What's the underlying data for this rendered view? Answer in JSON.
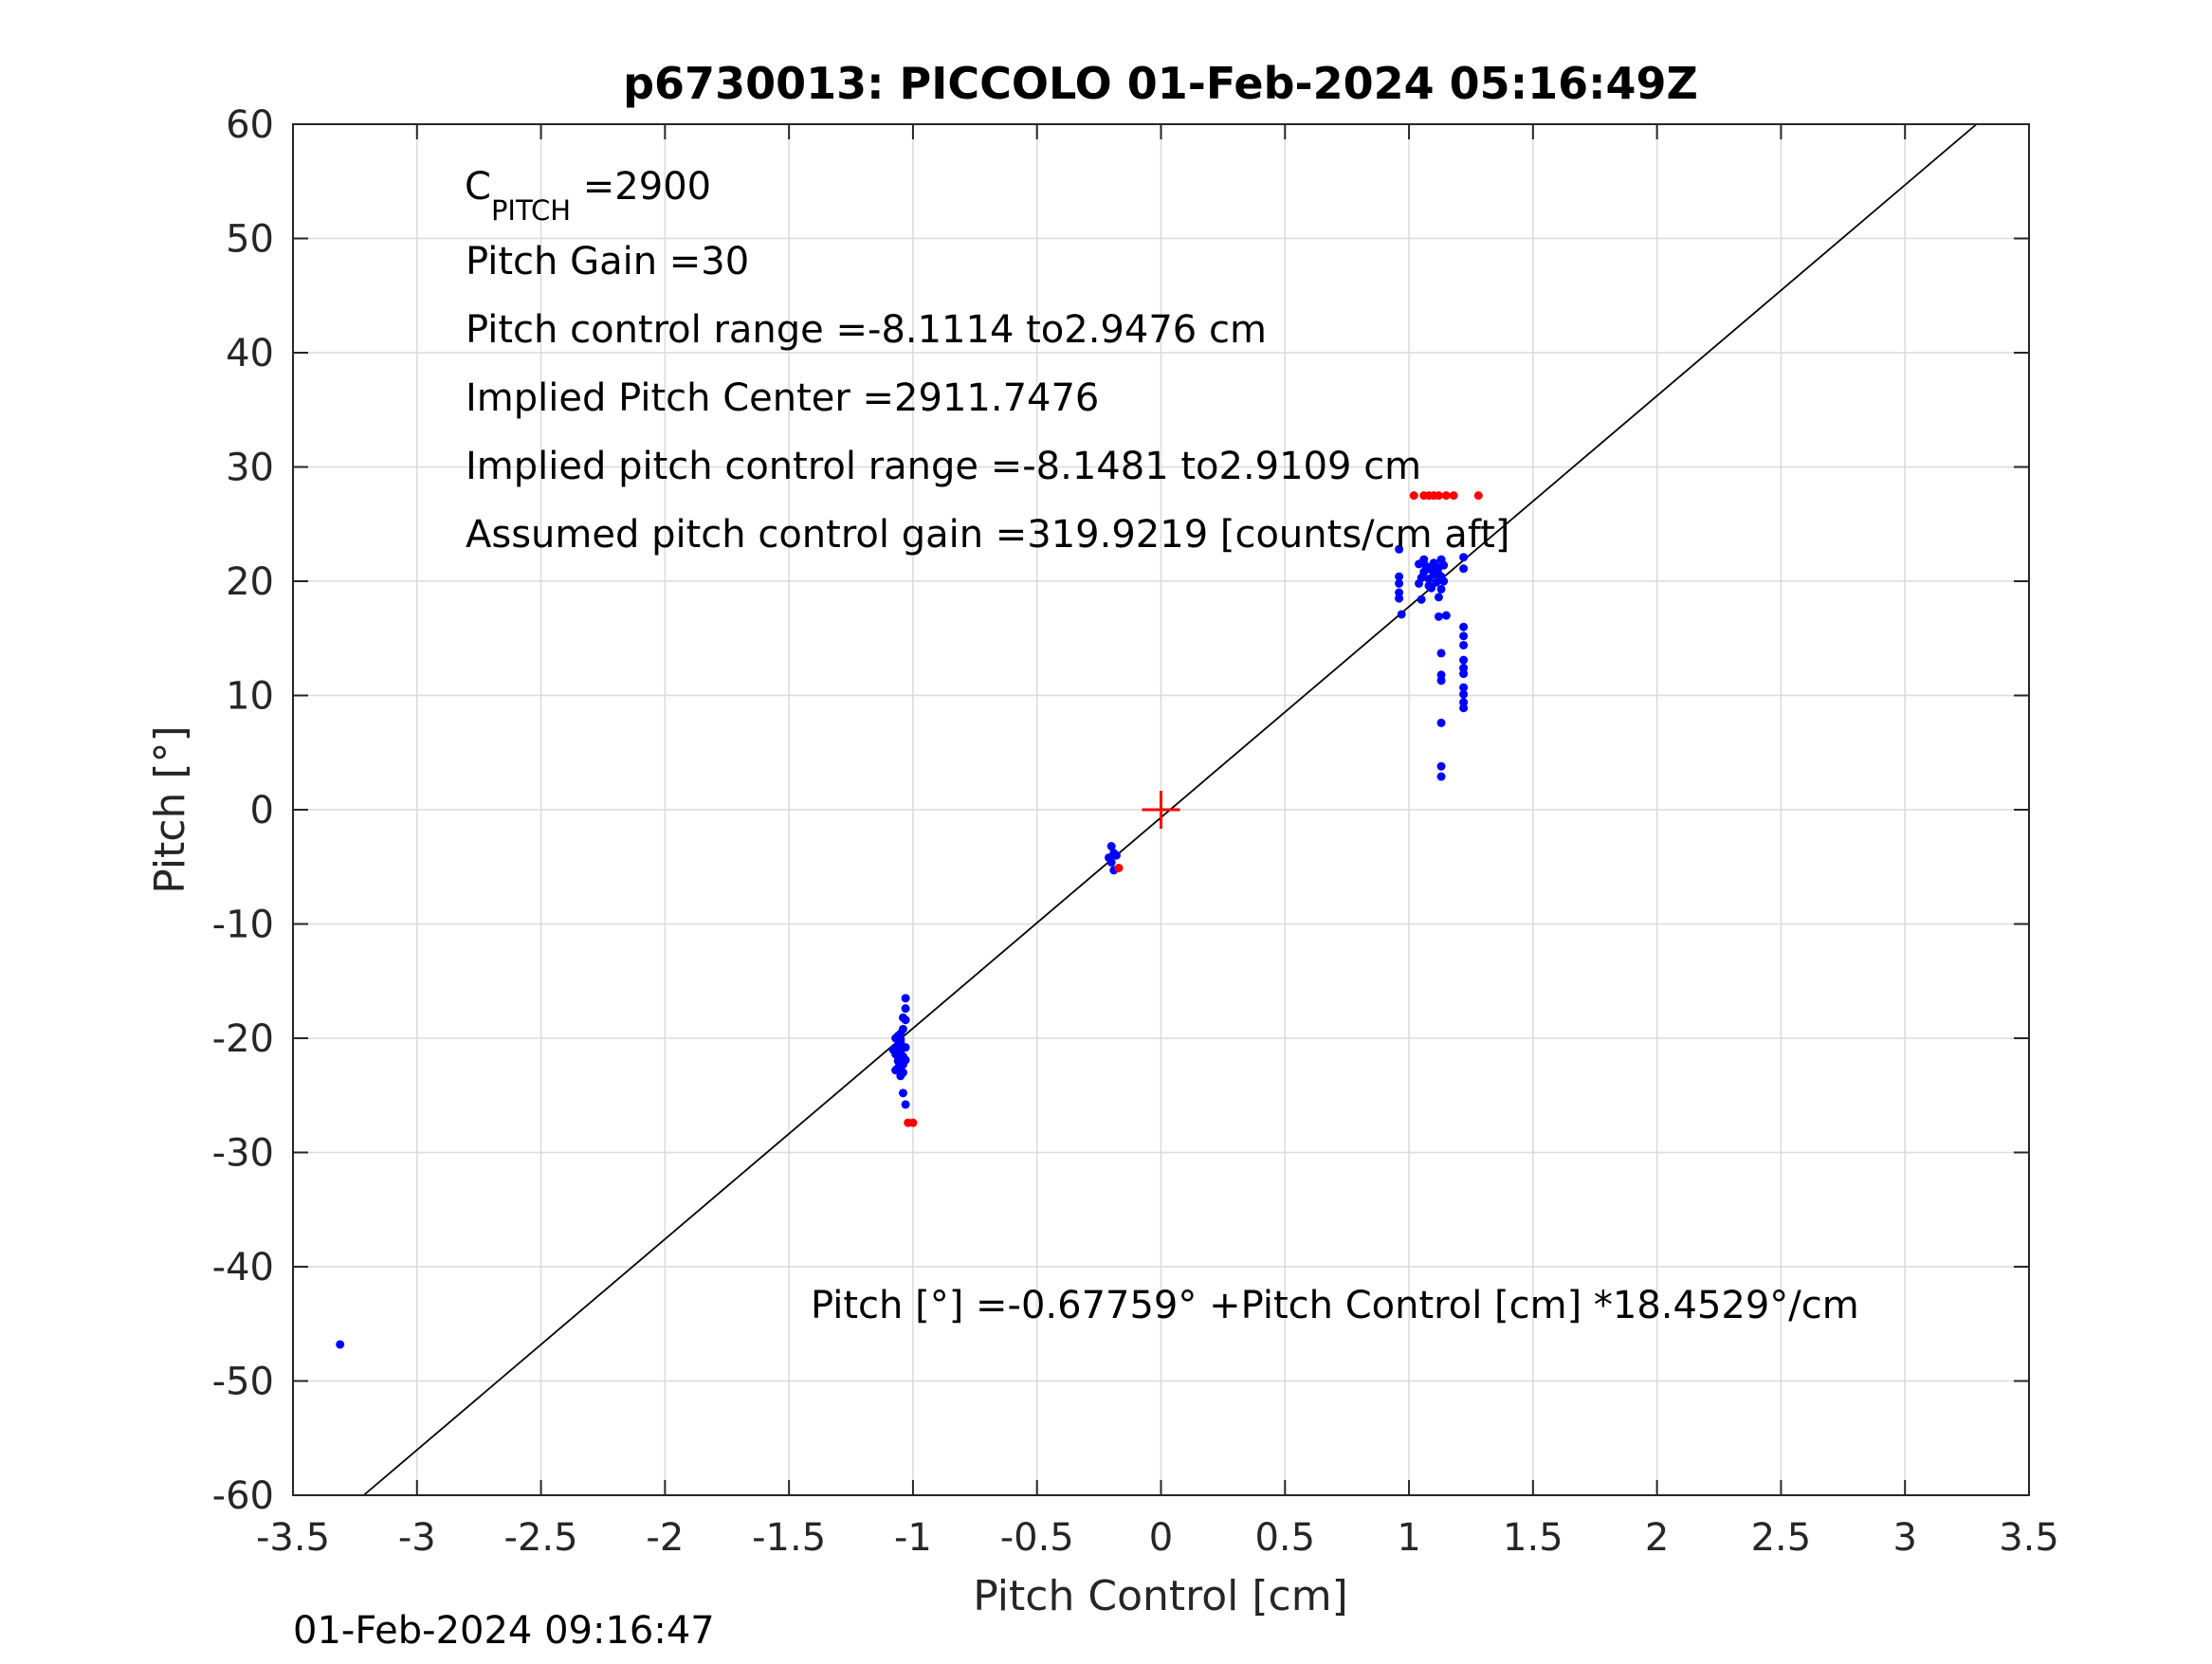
{
  "chart_data": {
    "type": "scatter",
    "title": "p6730013: PICCOLO 01-Feb-2024 05:16:49Z",
    "xlabel": "Pitch Control [cm]",
    "ylabel": "Pitch [°]",
    "xlim": [
      -3.5,
      3.5
    ],
    "ylim": [
      -60,
      60
    ],
    "grid": true,
    "x_ticks": [
      -3.5,
      -3,
      -2.5,
      -2,
      -1.5,
      -1,
      -0.5,
      0,
      0.5,
      1,
      1.5,
      2,
      2.5,
      3,
      3.5
    ],
    "y_ticks": [
      -60,
      -50,
      -40,
      -30,
      -20,
      -10,
      0,
      10,
      20,
      30,
      40,
      50,
      60
    ],
    "x_tick_labels": [
      "-3.5",
      "-3",
      "-2.5",
      "-2",
      "-1.5",
      "-1",
      "-0.5",
      "0",
      "0.5",
      "1",
      "1.5",
      "2",
      "2.5",
      "3",
      "3.5"
    ],
    "y_tick_labels": [
      "-60",
      "-50",
      "-40",
      "-30",
      "-20",
      "-10",
      "0",
      "10",
      "20",
      "30",
      "40",
      "50",
      "60"
    ],
    "colors": {
      "blue": "#0000ff",
      "red": "#ff0000",
      "fit": "#000000"
    },
    "series": [
      {
        "color": "#0000ff",
        "points": [
          [
            -3.31,
            -46.8
          ],
          [
            -0.2,
            -3.2
          ],
          [
            -0.19,
            -3.8
          ],
          [
            -0.18,
            -4.0
          ],
          [
            -0.2,
            -4.6
          ],
          [
            -0.19,
            -5.3
          ],
          [
            -0.21,
            -4.2
          ],
          [
            -1.07,
            -20.0
          ],
          [
            -1.06,
            -20.6
          ],
          [
            -1.08,
            -21.0
          ],
          [
            -1.05,
            -19.6
          ],
          [
            -1.04,
            -19.2
          ],
          [
            -1.06,
            -21.6
          ],
          [
            -1.05,
            -22.2
          ],
          [
            -1.07,
            -22.8
          ],
          [
            -1.04,
            -22.3
          ],
          [
            -1.05,
            -23.3
          ],
          [
            -1.03,
            -18.4
          ],
          [
            -1.03,
            -17.4
          ],
          [
            -1.03,
            -16.5
          ],
          [
            -1.04,
            -18.2
          ],
          [
            -1.03,
            -20.8
          ],
          [
            -1.05,
            -21.3
          ],
          [
            -1.06,
            -22.6
          ],
          [
            -1.04,
            -23.0
          ],
          [
            -1.05,
            -20.3
          ],
          [
            -1.07,
            -21.4
          ],
          [
            -1.06,
            -22.0
          ],
          [
            -1.04,
            -21.6
          ],
          [
            -1.05,
            -20.9
          ],
          [
            -1.04,
            -24.8
          ],
          [
            -1.03,
            -25.8
          ],
          [
            -1.06,
            -19.8
          ],
          [
            -1.05,
            -20.1
          ],
          [
            -1.03,
            -21.9
          ],
          [
            0.96,
            22.8
          ],
          [
            0.96,
            20.4
          ],
          [
            0.96,
            19.8
          ],
          [
            0.96,
            19.0
          ],
          [
            0.96,
            18.5
          ],
          [
            0.97,
            17.1
          ],
          [
            1.04,
            21.5
          ],
          [
            1.05,
            20.3
          ],
          [
            1.04,
            19.8
          ],
          [
            1.06,
            20.8
          ],
          [
            1.07,
            21.3
          ],
          [
            1.05,
            18.4
          ],
          [
            1.08,
            19.6
          ],
          [
            1.08,
            20.2
          ],
          [
            1.09,
            21.0
          ],
          [
            1.1,
            21.6
          ],
          [
            1.1,
            20.6
          ],
          [
            1.11,
            19.9
          ],
          [
            1.12,
            21.2
          ],
          [
            1.12,
            20.6
          ],
          [
            1.12,
            18.6
          ],
          [
            1.13,
            21.9
          ],
          [
            1.13,
            20.4
          ],
          [
            1.13,
            19.3
          ],
          [
            1.12,
            16.9
          ],
          [
            1.14,
            21.4
          ],
          [
            1.14,
            20.0
          ],
          [
            1.15,
            17.0
          ],
          [
            1.06,
            21.9
          ],
          [
            1.09,
            19.4
          ],
          [
            1.13,
            13.7
          ],
          [
            1.13,
            11.8
          ],
          [
            1.13,
            11.3
          ],
          [
            1.13,
            7.6
          ],
          [
            1.13,
            3.8
          ],
          [
            1.13,
            2.9
          ],
          [
            1.22,
            22.1
          ],
          [
            1.22,
            21.1
          ],
          [
            1.22,
            16.0
          ],
          [
            1.22,
            15.2
          ],
          [
            1.22,
            14.4
          ],
          [
            1.22,
            13.1
          ],
          [
            1.22,
            12.4
          ],
          [
            1.22,
            11.9
          ],
          [
            1.22,
            10.7
          ],
          [
            1.22,
            10.1
          ],
          [
            1.22,
            9.4
          ],
          [
            1.22,
            8.9
          ]
        ]
      },
      {
        "color": "#ff0000",
        "points": [
          [
            -0.17,
            -5.1
          ],
          [
            -1.02,
            -27.4
          ],
          [
            -1.0,
            -27.4
          ],
          [
            1.02,
            27.5
          ],
          [
            1.06,
            27.5
          ],
          [
            1.08,
            27.5
          ],
          [
            1.1,
            27.5
          ],
          [
            1.12,
            27.5
          ],
          [
            1.15,
            27.5
          ],
          [
            1.18,
            27.5
          ],
          [
            1.28,
            27.5
          ]
        ]
      }
    ],
    "fit_line": {
      "intercept": -0.67759,
      "slope": 18.4529
    },
    "center_marker": {
      "x": 0,
      "y": 0,
      "color": "#ff0000"
    },
    "annotations": {
      "c_pitch_main": "C",
      "c_pitch_sub": "PITCH",
      "c_pitch_value": " =2900",
      "pitch_gain": "Pitch Gain =30",
      "control_range": "Pitch control range =-8.1114 to2.9476 cm",
      "implied_center": "Implied Pitch Center =2911.7476",
      "implied_range": "Implied pitch control range =-8.1481 to2.9109 cm",
      "assumed_gain": "Assumed pitch control gain =319.9219 [counts/cm aft]",
      "fit_equation": "Pitch [°] =-0.67759° +Pitch Control [cm] *18.4529°/cm"
    },
    "footer_timestamp": "01-Feb-2024 09:16:47"
  }
}
